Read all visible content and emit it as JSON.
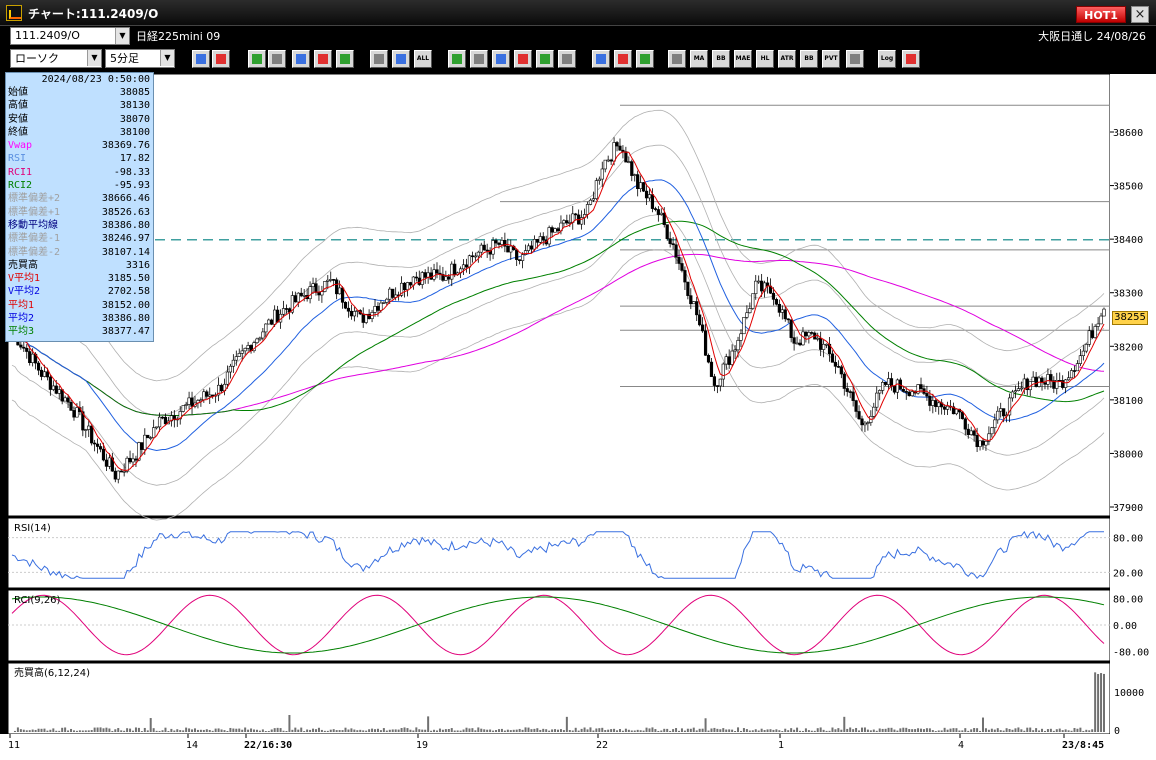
{
  "window": {
    "title": "チャート:111.2409/O",
    "hot_label": "HOT1",
    "close_label": "×"
  },
  "symbol_bar": {
    "code": "111.2409/O",
    "name": "日経225mini 09",
    "right_text": "大阪日通し  24/08/26"
  },
  "toolbar": {
    "chart_type": "ローソク",
    "period": "5分足",
    "buttons": [
      {
        "icon": "zoom-icon",
        "label": ""
      },
      {
        "icon": "table-icon",
        "label": ""
      },
      {
        "icon": "down-arrow-icon",
        "label": ""
      },
      {
        "icon": "search-icon",
        "label": ""
      },
      {
        "icon": "bar-icon",
        "label": ""
      },
      {
        "icon": "candle-mark-icon",
        "label": ""
      },
      {
        "icon": "triangle-icon",
        "label": ""
      },
      {
        "icon": "candle-red-icon",
        "label": ""
      },
      {
        "icon": "candle-blue-icon",
        "label": ""
      },
      {
        "icon": "all-icon",
        "label": "ALL"
      },
      {
        "icon": "pencil-icon",
        "label": ""
      },
      {
        "icon": "line-draw-icon",
        "label": ""
      },
      {
        "icon": "cursor-icon",
        "label": ""
      },
      {
        "icon": "arrow-icon",
        "label": ""
      },
      {
        "icon": "copy-icon",
        "label": ""
      },
      {
        "icon": "trash-icon",
        "label": ""
      },
      {
        "icon": "settings-icon",
        "label": ""
      },
      {
        "icon": "wrench-icon",
        "label": ""
      },
      {
        "icon": "color-icon",
        "label": ""
      },
      {
        "icon": "volume-icon",
        "label": ""
      },
      {
        "icon": "ma-icon",
        "label": "MA"
      },
      {
        "icon": "bb-icon",
        "label": "BB"
      },
      {
        "icon": "mae-icon",
        "label": "MAE"
      },
      {
        "icon": "hl-icon",
        "label": "HL"
      },
      {
        "icon": "atr-icon",
        "label": "ATR"
      },
      {
        "icon": "bb2-icon",
        "label": "BB"
      },
      {
        "icon": "pvt-icon",
        "label": "PVT"
      },
      {
        "icon": "box-icon",
        "label": ""
      },
      {
        "icon": "log-icon",
        "label": "Log"
      },
      {
        "icon": "export-icon",
        "label": ""
      }
    ]
  },
  "info_box": {
    "datetime": "2024/08/23 0:50:00",
    "rows": [
      {
        "label": "始値",
        "value": "38085",
        "color": "#000000"
      },
      {
        "label": "高値",
        "value": "38130",
        "color": "#000000"
      },
      {
        "label": "安値",
        "value": "38070",
        "color": "#000000"
      },
      {
        "label": "終値",
        "value": "38100",
        "color": "#000000"
      },
      {
        "label": "Vwap",
        "value": "38369.76",
        "color": "#ff00ff"
      },
      {
        "label": "RSI",
        "value": "17.82",
        "color": "#5a8fe0"
      },
      {
        "label": "RCI1",
        "value": "-98.33",
        "color": "#e0007a"
      },
      {
        "label": "RCI2",
        "value": "-95.93",
        "color": "#008000"
      },
      {
        "label": "標準偏差+2",
        "value": "38666.46",
        "color": "#a0a0a0"
      },
      {
        "label": "標準偏差+1",
        "value": "38526.63",
        "color": "#a0a0a0"
      },
      {
        "label": "移動平均線",
        "value": "38386.80",
        "color": "#000080"
      },
      {
        "label": "標準偏差-1",
        "value": "38246.97",
        "color": "#a0a0a0"
      },
      {
        "label": "標準偏差-2",
        "value": "38107.14",
        "color": "#a0a0a0"
      },
      {
        "label": "売買高",
        "value": "3316",
        "color": "#000000"
      },
      {
        "label": "V平均1",
        "value": "3185.50",
        "color": "#e00000"
      },
      {
        "label": "V平均2",
        "value": "2702.58",
        "color": "#0000e0"
      },
      {
        "label": "平均1",
        "value": "38152.00",
        "color": "#e00000"
      },
      {
        "label": "平均2",
        "value": "38386.80",
        "color": "#0000e0"
      },
      {
        "label": "平均3",
        "value": "38377.47",
        "color": "#008000"
      }
    ]
  },
  "price_axis": {
    "ticks": [
      "38600",
      "38500",
      "38400",
      "38300",
      "38200",
      "38100",
      "38000",
      "37900"
    ],
    "current_price": "38255"
  },
  "rsi_panel": {
    "title": "RSI(14)",
    "ticks": [
      "80.00",
      "20.00"
    ]
  },
  "rci_panel": {
    "title": "RCI(9,26)",
    "ticks": [
      "80.00",
      "0.00",
      "-80.00"
    ]
  },
  "vol_panel": {
    "title": "売買高(6,12,24)",
    "ticks": [
      "10000",
      "0"
    ]
  },
  "time_axis": {
    "labels": [
      {
        "text": "11",
        "bold": false
      },
      {
        "text": "14",
        "bold": false
      },
      {
        "text": "22/16:30",
        "bold": true
      },
      {
        "text": "19",
        "bold": false
      },
      {
        "text": "22",
        "bold": false
      },
      {
        "text": "1",
        "bold": false
      },
      {
        "text": "4",
        "bold": false
      },
      {
        "text": "23/8:45",
        "bold": true
      }
    ]
  },
  "colors": {
    "candle_up": "#ffffff",
    "candle_down": "#000000",
    "ma_short": "#e00000",
    "ma_mid": "#2060e0",
    "ma_long": "#008000",
    "vwap": "#e000e0",
    "bands": "#b0b0b0",
    "rsi": "#3a70e0",
    "rci1": "#e0007a",
    "rci2": "#008000",
    "dashed_level": "#008080"
  }
}
